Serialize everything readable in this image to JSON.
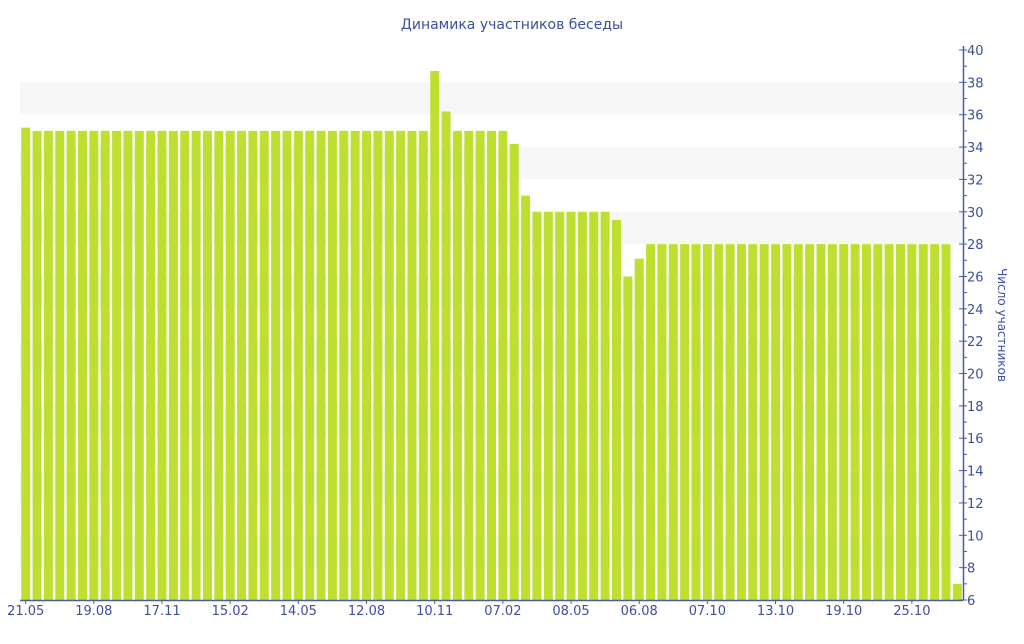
{
  "chart_data": {
    "type": "bar",
    "title": "Динамика участников беседы",
    "xlabel": "",
    "ylabel": "Число участников",
    "ylim": [
      6,
      40
    ],
    "yticks": [
      6,
      8,
      10,
      12,
      14,
      16,
      18,
      20,
      22,
      24,
      26,
      28,
      30,
      32,
      34,
      36,
      38,
      40
    ],
    "xtick_labels": [
      {
        "bar": 0,
        "label": "21.05"
      },
      {
        "bar": 6,
        "label": "19.08"
      },
      {
        "bar": 12,
        "label": "17.11"
      },
      {
        "bar": 18,
        "label": "15.02"
      },
      {
        "bar": 24,
        "label": "14.05"
      },
      {
        "bar": 30,
        "label": "12.08"
      },
      {
        "bar": 36,
        "label": "10.11"
      },
      {
        "bar": 42,
        "label": "07.02"
      },
      {
        "bar": 48,
        "label": "08.05"
      },
      {
        "bar": 54,
        "label": "06.08"
      },
      {
        "bar": 60,
        "label": "07.10"
      },
      {
        "bar": 66,
        "label": "13.10"
      },
      {
        "bar": 72,
        "label": "19.10"
      },
      {
        "bar": 78,
        "label": "25.10"
      }
    ],
    "values": [
      35.2,
      35,
      35,
      35,
      35,
      35,
      35,
      35,
      35,
      35,
      35,
      35,
      35,
      35,
      35,
      35,
      35,
      35,
      35,
      35,
      35,
      35,
      35,
      35,
      35,
      35,
      35,
      35,
      35,
      35,
      35,
      35,
      35,
      35,
      35,
      35,
      38.7,
      36.2,
      35,
      35,
      35,
      35,
      35,
      34.2,
      31,
      30,
      30,
      30,
      30,
      30,
      30,
      30,
      29.5,
      26,
      27.1,
      28,
      28,
      28,
      28,
      28,
      28,
      28,
      28,
      28,
      28,
      28,
      28,
      28,
      28,
      28,
      28,
      28,
      28,
      28,
      28,
      28,
      28,
      28,
      28,
      28,
      28,
      28,
      7
    ],
    "grid": "alternating horizontal bands",
    "colors": {
      "bar": "#bde030",
      "axis": "#4a5ca8",
      "text": "#3d4f9f",
      "band": "#f7f7f7"
    }
  }
}
